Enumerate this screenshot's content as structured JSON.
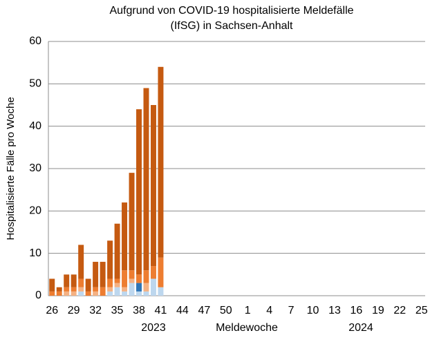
{
  "chart_data": {
    "type": "stacked_bar",
    "title": [
      "Aufgrund von COVID-19 hospitalisierte Meldefälle",
      "(IfSG) in Sachsen-Anhalt"
    ],
    "ylabel": "Hospitalisierte Fälle pro Woche",
    "xlabel": "Meldewoche",
    "year_labels": [
      "2023",
      "2024"
    ],
    "categories": [
      "26",
      null,
      null,
      "29",
      null,
      null,
      "32",
      null,
      null,
      "35",
      null,
      null,
      "38",
      null,
      null,
      "41",
      null,
      null,
      "44",
      null,
      null,
      "47",
      null,
      null,
      "50",
      null,
      null,
      "1",
      null,
      null,
      "4",
      null,
      null,
      "7",
      null,
      null,
      "10",
      null,
      null,
      "13",
      null,
      null,
      "16",
      null,
      null,
      "19",
      null,
      null,
      "22",
      null,
      null,
      "25"
    ],
    "series": [
      {
        "color": "#bdd7ee",
        "values": [
          0,
          0,
          0,
          0,
          1,
          0,
          0,
          0,
          1,
          2,
          1,
          3,
          1,
          1,
          4,
          2,
          null,
          null,
          null,
          null,
          null,
          null,
          null,
          null,
          null,
          null,
          null,
          null,
          null,
          null,
          null,
          null,
          null,
          null,
          null,
          null,
          null,
          null,
          null,
          null,
          null,
          null,
          null,
          null,
          null,
          null,
          null,
          null,
          null,
          null,
          null,
          null
        ]
      },
      {
        "color": "#2e75b6",
        "values": [
          0,
          0,
          0,
          0,
          0,
          0,
          0,
          0,
          0,
          0,
          0,
          0,
          2,
          0,
          0,
          0,
          null,
          null,
          null,
          null,
          null,
          null,
          null,
          null,
          null,
          null,
          null,
          null,
          null,
          null,
          null,
          null,
          null,
          null,
          null,
          null,
          null,
          null,
          null,
          null,
          null,
          null,
          null,
          null,
          null,
          null,
          null,
          null,
          null,
          null,
          null,
          null
        ]
      },
      {
        "color": "#f4b183",
        "values": [
          0,
          0,
          1,
          1,
          1,
          0,
          1,
          0,
          1,
          1,
          1,
          1,
          0,
          2,
          0,
          0,
          null,
          null,
          null,
          null,
          null,
          null,
          null,
          null,
          null,
          null,
          null,
          null,
          null,
          null,
          null,
          null,
          null,
          null,
          null,
          null,
          null,
          null,
          null,
          null,
          null,
          null,
          null,
          null,
          null,
          null,
          null,
          null,
          null,
          null,
          null,
          null
        ]
      },
      {
        "color": "#ed7d31",
        "values": [
          1,
          1,
          1,
          1,
          2,
          1,
          1,
          2,
          2,
          1,
          4,
          2,
          2,
          3,
          3,
          7,
          null,
          null,
          null,
          null,
          null,
          null,
          null,
          null,
          null,
          null,
          null,
          null,
          null,
          null,
          null,
          null,
          null,
          null,
          null,
          null,
          null,
          null,
          null,
          null,
          null,
          null,
          null,
          null,
          null,
          null,
          null,
          null,
          null,
          null,
          null,
          null
        ]
      },
      {
        "color": "#c55a11",
        "values": [
          3,
          1,
          3,
          3,
          8,
          3,
          6,
          6,
          9,
          13,
          16,
          23,
          39,
          43,
          38,
          45,
          null,
          null,
          null,
          null,
          null,
          null,
          null,
          null,
          null,
          null,
          null,
          null,
          null,
          null,
          null,
          null,
          null,
          null,
          null,
          null,
          null,
          null,
          null,
          null,
          null,
          null,
          null,
          null,
          null,
          null,
          null,
          null,
          null,
          null,
          null,
          null
        ]
      }
    ],
    "ylim": [
      0,
      60
    ],
    "yticks": [
      0,
      10,
      20,
      30,
      40,
      50,
      60
    ],
    "grid": true
  }
}
